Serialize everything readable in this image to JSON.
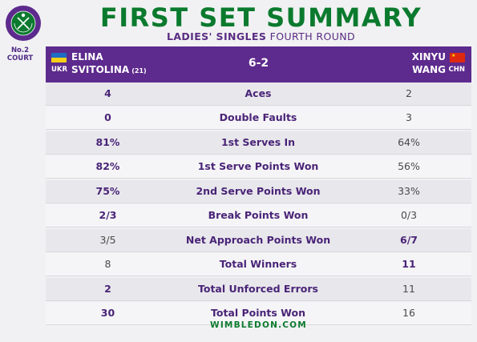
{
  "court": {
    "line1": "No.2",
    "line2": "COURT"
  },
  "title": "FIRST SET SUMMARY",
  "subtitle": {
    "strong": "LADIES' SINGLES",
    "rest": "FOURTH ROUND"
  },
  "colors": {
    "green": "#0b7a2e",
    "purple": "#5d2a8d"
  },
  "player1": {
    "first": "ELINA",
    "last": "SVITOLINA",
    "seed": "(21)",
    "country": "UKR"
  },
  "player2": {
    "first": "XINYU",
    "last": "WANG",
    "country": "CHN"
  },
  "score": "6-2",
  "stats": [
    {
      "label": "Aces",
      "p1": "4",
      "p2": "2",
      "p1_bold": true,
      "p2_bold": false
    },
    {
      "label": "Double Faults",
      "p1": "0",
      "p2": "3",
      "p1_bold": true,
      "p2_bold": false
    },
    {
      "label": "1st Serves In",
      "p1": "81%",
      "p2": "64%",
      "p1_bold": true,
      "p2_bold": false
    },
    {
      "label": "1st Serve Points Won",
      "p1": "82%",
      "p2": "56%",
      "p1_bold": true,
      "p2_bold": false
    },
    {
      "label": "2nd Serve Points Won",
      "p1": "75%",
      "p2": "33%",
      "p1_bold": true,
      "p2_bold": false
    },
    {
      "label": "Break Points Won",
      "p1": "2/3",
      "p2": "0/3",
      "p1_bold": true,
      "p2_bold": false
    },
    {
      "label": "Net Approach Points Won",
      "p1": "3/5",
      "p2": "6/7",
      "p1_bold": false,
      "p2_bold": true
    },
    {
      "label": "Total Winners",
      "p1": "8",
      "p2": "11",
      "p1_bold": false,
      "p2_bold": true
    },
    {
      "label": "Total Unforced Errors",
      "p1": "2",
      "p2": "11",
      "p1_bold": true,
      "p2_bold": false
    },
    {
      "label": "Total Points Won",
      "p1": "30",
      "p2": "16",
      "p1_bold": true,
      "p2_bold": false
    }
  ],
  "footer": "WIMBLEDON.COM"
}
